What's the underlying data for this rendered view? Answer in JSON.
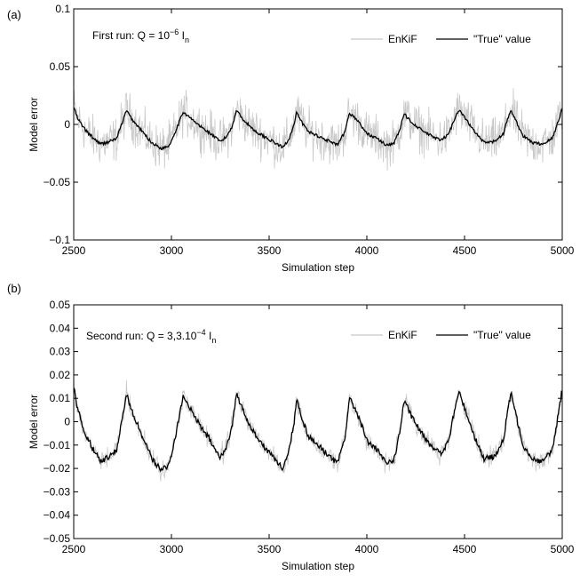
{
  "colors": {
    "enkif": "#c8c8c8",
    "true_value": "#000000",
    "axes": "#000000"
  },
  "chart_data": [
    {
      "panel_label": "(a)",
      "type": "line",
      "annotation": {
        "text": "First run: Q = 10",
        "exponent": "−6",
        "suffix": " I",
        "subscript": "n"
      },
      "xlabel": "Simulation step",
      "ylabel": "Model error",
      "xlim": [
        2500,
        5000
      ],
      "ylim": [
        -0.1,
        0.1
      ],
      "xticks": [
        2500,
        3000,
        3500,
        4000,
        4500,
        5000
      ],
      "yticks": [
        -0.1,
        -0.05,
        0,
        0.05,
        0.1
      ],
      "xtick_labels": [
        "2500",
        "3000",
        "3500",
        "4000",
        "4500",
        "5000"
      ],
      "ytick_labels": [
        "−0.1",
        "−0.05",
        "0",
        "0.05",
        "0.1"
      ],
      "legend_position": "top-right",
      "series": [
        {
          "name": "EnKiF",
          "color": "#c8c8c8",
          "noise_amplitude": 0.028
        },
        {
          "name": "\"True\" value",
          "color": "#000000",
          "x": [
            2500,
            2520,
            2560,
            2600,
            2640,
            2680,
            2720,
            2745,
            2770,
            2800,
            2850,
            2900,
            2950,
            2990,
            3040,
            3060,
            3100,
            3150,
            3200,
            3250,
            3280,
            3310,
            3335,
            3350,
            3380,
            3430,
            3480,
            3530,
            3570,
            3600,
            3630,
            3640,
            3670,
            3700,
            3750,
            3800,
            3850,
            3890,
            3910,
            3950,
            4000,
            4050,
            4100,
            4140,
            4170,
            4190,
            4230,
            4280,
            4330,
            4380,
            4420,
            4440,
            4470,
            4500,
            4550,
            4600,
            4650,
            4700,
            4720,
            4740,
            4760,
            4800,
            4850,
            4900,
            4950,
            4970,
            5000
          ],
          "y": [
            0.015,
            0.005,
            -0.005,
            -0.012,
            -0.017,
            -0.015,
            -0.012,
            0.0,
            0.012,
            0.004,
            -0.006,
            -0.016,
            -0.021,
            -0.018,
            0.002,
            0.011,
            0.005,
            -0.002,
            -0.008,
            -0.015,
            -0.011,
            -0.002,
            0.013,
            0.008,
            0.002,
            -0.006,
            -0.011,
            -0.016,
            -0.02,
            -0.013,
            0.001,
            0.01,
            0.001,
            -0.006,
            -0.01,
            -0.014,
            -0.018,
            -0.006,
            0.01,
            0.004,
            -0.008,
            -0.012,
            -0.018,
            -0.016,
            -0.004,
            0.009,
            0.002,
            -0.005,
            -0.01,
            -0.014,
            -0.008,
            0.001,
            0.013,
            0.006,
            -0.006,
            -0.016,
            -0.015,
            -0.008,
            0.005,
            0.012,
            0.004,
            -0.01,
            -0.016,
            -0.017,
            -0.012,
            -0.002,
            0.014
          ]
        }
      ]
    },
    {
      "panel_label": "(b)",
      "type": "line",
      "annotation": {
        "text": "Second run: Q = 3,3.10",
        "exponent": "−4",
        "suffix": " I",
        "subscript": "n"
      },
      "xlabel": "Simulation step",
      "ylabel": "Model error",
      "xlim": [
        2500,
        5000
      ],
      "ylim": [
        -0.05,
        0.05
      ],
      "xticks": [
        2500,
        3000,
        3500,
        4000,
        4500,
        5000
      ],
      "yticks": [
        -0.05,
        -0.04,
        -0.03,
        -0.02,
        -0.01,
        0,
        0.01,
        0.02,
        0.03,
        0.04,
        0.05
      ],
      "xtick_labels": [
        "2500",
        "3000",
        "3500",
        "4000",
        "4500",
        "5000"
      ],
      "ytick_labels": [
        "−0.05",
        "−0.04",
        "−0.03",
        "−0.02",
        "−0.01",
        "0",
        "0.01",
        "0.02",
        "0.03",
        "0.04",
        "0.05"
      ],
      "legend_position": "top-right",
      "series": [
        {
          "name": "EnKiF",
          "color": "#c8c8c8",
          "noise_amplitude": 0.006
        },
        {
          "name": "\"True\" value",
          "color": "#000000",
          "x": [
            2500,
            2520,
            2560,
            2600,
            2640,
            2680,
            2720,
            2745,
            2770,
            2800,
            2850,
            2900,
            2950,
            2990,
            3040,
            3060,
            3100,
            3150,
            3200,
            3250,
            3280,
            3310,
            3335,
            3350,
            3380,
            3430,
            3480,
            3530,
            3570,
            3600,
            3630,
            3640,
            3670,
            3700,
            3750,
            3800,
            3850,
            3890,
            3910,
            3950,
            4000,
            4050,
            4100,
            4140,
            4170,
            4190,
            4230,
            4280,
            4330,
            4380,
            4420,
            4440,
            4470,
            4500,
            4550,
            4600,
            4650,
            4700,
            4720,
            4740,
            4760,
            4800,
            4850,
            4900,
            4950,
            4970,
            5000
          ],
          "y": [
            0.015,
            0.005,
            -0.005,
            -0.012,
            -0.017,
            -0.015,
            -0.012,
            0.0,
            0.012,
            0.004,
            -0.006,
            -0.016,
            -0.021,
            -0.018,
            0.002,
            0.011,
            0.005,
            -0.002,
            -0.008,
            -0.015,
            -0.011,
            -0.002,
            0.013,
            0.008,
            0.002,
            -0.006,
            -0.011,
            -0.016,
            -0.02,
            -0.013,
            0.001,
            0.01,
            0.001,
            -0.006,
            -0.01,
            -0.014,
            -0.018,
            -0.006,
            0.01,
            0.004,
            -0.008,
            -0.012,
            -0.018,
            -0.016,
            -0.004,
            0.009,
            0.002,
            -0.005,
            -0.01,
            -0.014,
            -0.008,
            0.001,
            0.013,
            0.006,
            -0.006,
            -0.016,
            -0.015,
            -0.008,
            0.005,
            0.012,
            0.004,
            -0.01,
            -0.016,
            -0.017,
            -0.012,
            -0.002,
            0.014
          ]
        }
      ]
    }
  ]
}
